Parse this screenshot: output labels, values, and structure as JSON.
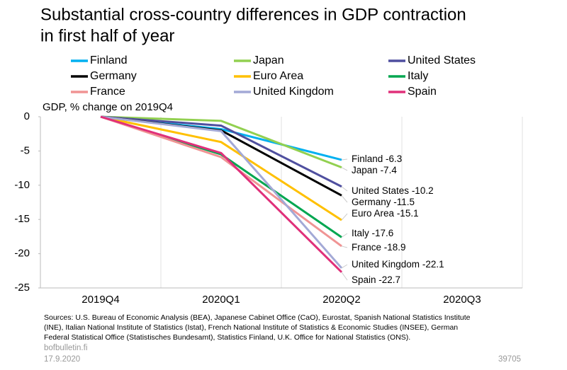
{
  "chart_data": {
    "type": "line",
    "title": [
      "Substantial cross-country differences in GDP contraction",
      "in first half of year"
    ],
    "y_label": "GDP, % change on 2019Q4",
    "categories": [
      "2019Q4",
      "2020Q1",
      "2020Q2",
      "2020Q3"
    ],
    "series": [
      {
        "name": "Finland",
        "color": "#00b0f0",
        "values": [
          0,
          -1.8,
          -6.3,
          null
        ]
      },
      {
        "name": "Japan",
        "color": "#92d050",
        "values": [
          0,
          -0.6,
          -7.4,
          null
        ]
      },
      {
        "name": "United States",
        "color": "#4f4f9f",
        "values": [
          0,
          -1.3,
          -10.2,
          null
        ]
      },
      {
        "name": "Germany",
        "color": "#000000",
        "values": [
          0,
          -2.0,
          -11.5,
          null
        ]
      },
      {
        "name": "Euro Area",
        "color": "#ffc000",
        "values": [
          0,
          -3.7,
          -15.1,
          null
        ]
      },
      {
        "name": "Italy",
        "color": "#00a650",
        "values": [
          0,
          -5.5,
          -17.6,
          null
        ]
      },
      {
        "name": "France",
        "color": "#f09494",
        "values": [
          0,
          -5.9,
          -18.9,
          null
        ]
      },
      {
        "name": "United Kingdom",
        "color": "#a3a9d6",
        "values": [
          0,
          -2.1,
          -22.1,
          null
        ]
      },
      {
        "name": "Spain",
        "color": "#e0307a",
        "values": [
          0,
          -5.3,
          -22.7,
          null
        ]
      }
    ],
    "ylim": [
      -25,
      0
    ],
    "yticks": [
      0,
      -5,
      -10,
      -15,
      -20,
      -25
    ],
    "source": [
      "Sources: U.S. Bureau of Economic Analysis (BEA), Japanese Cabinet Office (CaO), Eurostat, Spanish National Statistics Institute",
      "(INE), Italian National Institute of Statistics (Istat), French National Institute of Statistics & Economic Studies (INSEE), German",
      "Federal Statistical Office (Statistisches Bundesamt), Statistics Finland, U.K. Office for National Statistics (ONS)."
    ],
    "site": "bofbulletin.fi",
    "date": "17.9.2020",
    "id": "39705"
  }
}
